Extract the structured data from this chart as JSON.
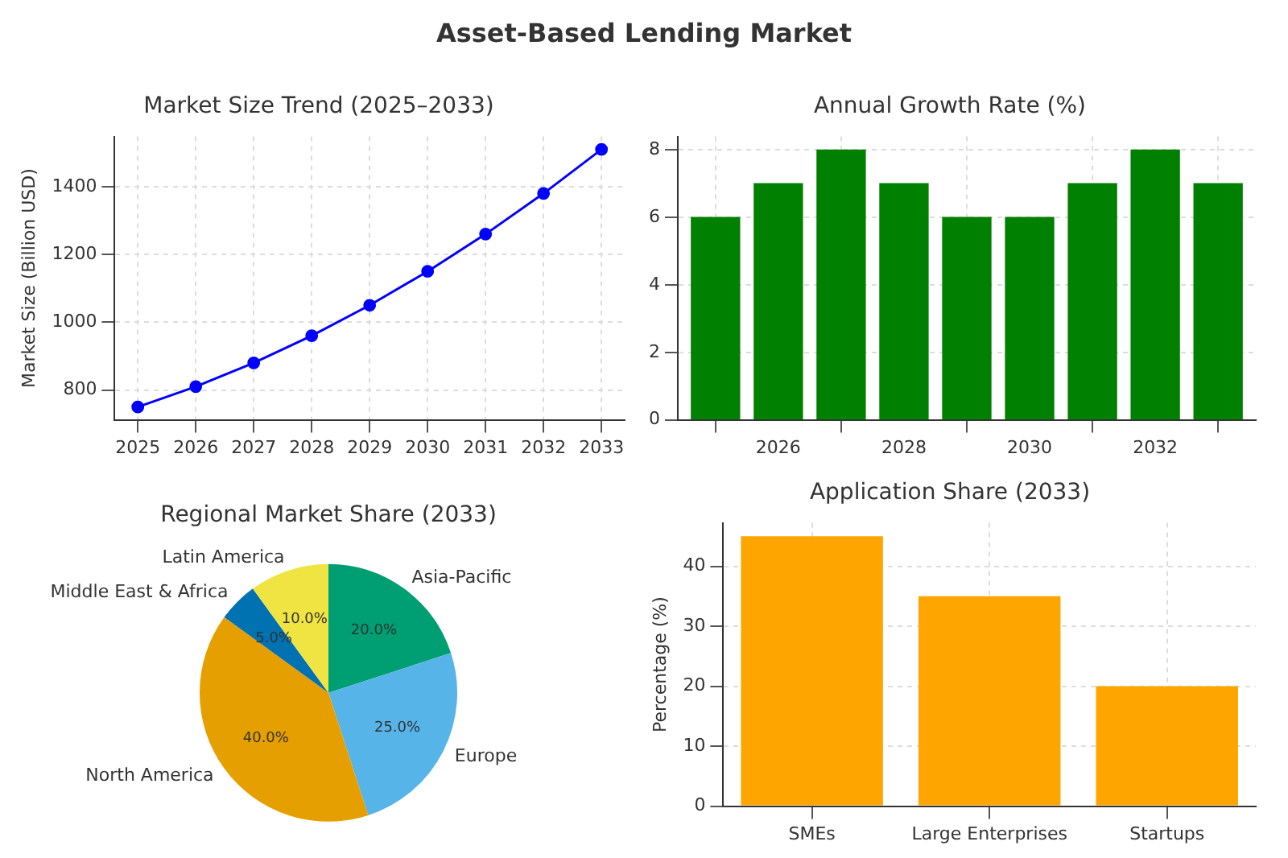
{
  "chart_data": [
    {
      "type": "other",
      "title": "Asset-Based Lending Market"
    },
    {
      "type": "line",
      "title": "Market Size Trend (2025–2033)",
      "ylabel": "Market Size (Billion USD)",
      "x": [
        2025,
        2026,
        2027,
        2028,
        2029,
        2030,
        2031,
        2032,
        2033
      ],
      "series": [
        {
          "color": "#0000ff",
          "values": [
            750,
            810,
            880,
            960,
            1050,
            1150,
            1260,
            1380,
            1510
          ]
        }
      ],
      "xlim": [
        2024.6,
        2033.4
      ],
      "xticks": [
        2025,
        2026,
        2027,
        2028,
        2029,
        2030,
        2031,
        2032,
        2033
      ],
      "ylim": [
        712,
        1548
      ],
      "yticks": [
        800,
        1000,
        1200,
        1400
      ],
      "grid": true,
      "marker": "circle",
      "line_style": "solid",
      "legend": false
    },
    {
      "type": "bar",
      "title": "Annual Growth Rate (%)",
      "x": [
        2025,
        2026,
        2027,
        2028,
        2029,
        2030,
        2031,
        2032,
        2033
      ],
      "series": [
        {
          "color": "#008000",
          "values": [
            6,
            7,
            8,
            7,
            6,
            6,
            7,
            8,
            7
          ]
        }
      ],
      "xlim": [
        2024.4,
        2033.6
      ],
      "xticks": [
        2026,
        2028,
        2030,
        2032
      ],
      "ylim": [
        0,
        8.4
      ],
      "yticks": [
        0,
        2,
        4,
        6,
        8
      ],
      "grid": true,
      "legend": false
    },
    {
      "type": "pie",
      "title": "Regional Market Share (2033)",
      "categories": [
        "Asia-Pacific",
        "Europe",
        "North America",
        "Middle East & Africa",
        "Latin America"
      ],
      "values": [
        20,
        25,
        40,
        5,
        10
      ],
      "colors": [
        "#009e73",
        "#56b4e9",
        "#e69f00",
        "#0072b2",
        "#f0e442"
      ],
      "value_labels": [
        "20.0%",
        "25.0%",
        "40.0%",
        "5.0%",
        "10.0%"
      ],
      "legend": false
    },
    {
      "type": "bar",
      "title": "Application Share (2033)",
      "ylabel": "Percentage (%)",
      "categories": [
        "SMEs",
        "Large Enterprises",
        "Startups"
      ],
      "series": [
        {
          "color": "#ffa500",
          "values": [
            45,
            35,
            20
          ]
        }
      ],
      "ylim": [
        0,
        47.25
      ],
      "yticks": [
        0,
        10,
        20,
        30,
        40
      ],
      "grid": true,
      "legend": false
    }
  ]
}
